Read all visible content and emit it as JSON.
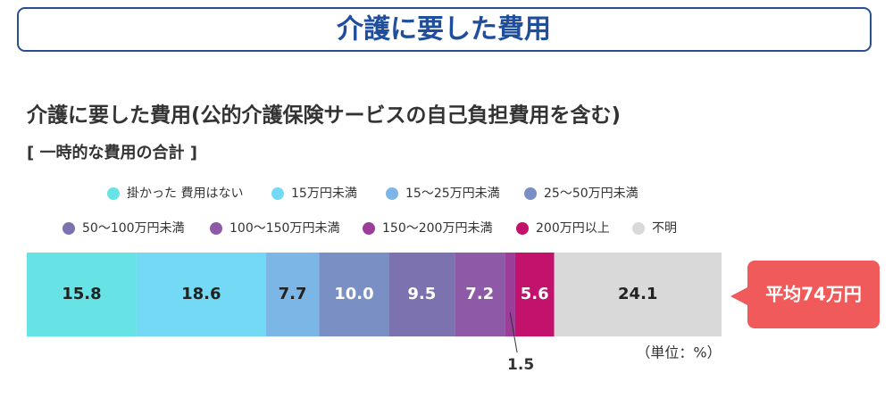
{
  "header": {
    "title": "介護に要した費用"
  },
  "chart_data": {
    "type": "stacked_bar",
    "title": "介護に要した費用(公的介護保険サービスの自己負担費用を含む)",
    "subtitle": "[ 一時的な費用の合計 ]",
    "categories": [
      null
    ],
    "xlim": [
      0,
      100
    ],
    "series": [
      {
        "name": "掛かった 費用はない",
        "color": "#67e3e6",
        "label_color": "#222222",
        "values": [
          15.8
        ]
      },
      {
        "name": "15万円未満",
        "color": "#74d9f5",
        "label_color": "#222222",
        "values": [
          18.6
        ]
      },
      {
        "name": "15～25万円未満",
        "color": "#7cb6e6",
        "label_color": "#222222",
        "values": [
          7.7
        ]
      },
      {
        "name": "25～50万円未満",
        "color": "#7a8fc4",
        "label_color": "#ffffff",
        "values": [
          10.0
        ],
        "value_labels": [
          "10.0"
        ]
      },
      {
        "name": "50～100万円未満",
        "color": "#7c72b0",
        "label_color": "#ffffff",
        "values": [
          9.5
        ]
      },
      {
        "name": "100～150万円未満",
        "color": "#8e5aa8",
        "label_color": "#ffffff",
        "values": [
          7.2
        ]
      },
      {
        "name": "150～200万円未満",
        "color": "#9c3d9a",
        "label_color": "#222222",
        "label_position": "below",
        "values": [
          1.5
        ]
      },
      {
        "name": "200万円以上",
        "color": "#c2126b",
        "label_color": "#ffffff",
        "values": [
          5.6
        ]
      },
      {
        "name": "不明",
        "color": "#d9d9d9",
        "label_color": "#222222",
        "values": [
          24.1
        ]
      }
    ],
    "annotations": {
      "average": "平均74万円",
      "unit": "（単位：%）"
    }
  }
}
